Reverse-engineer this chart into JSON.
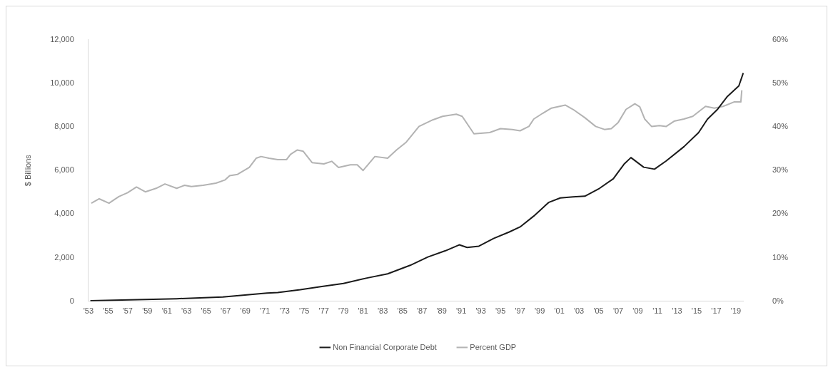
{
  "chart_data": {
    "type": "line",
    "ylabel": "$ Billions",
    "legend": "bottom",
    "grid": false,
    "marker": "none",
    "line_style": "solid",
    "xlim": [
      1953,
      2019.8
    ],
    "xticks": [
      {
        "value": 1953,
        "label": "'53"
      },
      {
        "value": 1955,
        "label": "'55"
      },
      {
        "value": 1957,
        "label": "'57"
      },
      {
        "value": 1959,
        "label": "'59"
      },
      {
        "value": 1961,
        "label": "'61"
      },
      {
        "value": 1963,
        "label": "'63"
      },
      {
        "value": 1965,
        "label": "'65"
      },
      {
        "value": 1967,
        "label": "'67"
      },
      {
        "value": 1969,
        "label": "'69"
      },
      {
        "value": 1971,
        "label": "'71"
      },
      {
        "value": 1973,
        "label": "'73"
      },
      {
        "value": 1975,
        "label": "'75"
      },
      {
        "value": 1977,
        "label": "'77"
      },
      {
        "value": 1979,
        "label": "'79"
      },
      {
        "value": 1981,
        "label": "'81"
      },
      {
        "value": 1983,
        "label": "'83"
      },
      {
        "value": 1985,
        "label": "'85"
      },
      {
        "value": 1987,
        "label": "'87"
      },
      {
        "value": 1989,
        "label": "'89"
      },
      {
        "value": 1991,
        "label": "'91"
      },
      {
        "value": 1993,
        "label": "'93"
      },
      {
        "value": 1995,
        "label": "'95"
      },
      {
        "value": 1997,
        "label": "'97"
      },
      {
        "value": 1999,
        "label": "'99"
      },
      {
        "value": 2001,
        "label": "'01"
      },
      {
        "value": 2003,
        "label": "'03"
      },
      {
        "value": 2005,
        "label": "'05"
      },
      {
        "value": 2007,
        "label": "'07"
      },
      {
        "value": 2009,
        "label": "'09"
      },
      {
        "value": 2011,
        "label": "'11"
      },
      {
        "value": 2013,
        "label": "'13"
      },
      {
        "value": 2015,
        "label": "'15"
      },
      {
        "value": 2017,
        "label": "'17"
      },
      {
        "value": 2019,
        "label": "'19"
      }
    ],
    "ylim": [
      0,
      12000
    ],
    "yticks": [
      0,
      {
        "value": 2000,
        "label": "2,000"
      },
      {
        "value": 4000,
        "label": "4,000"
      },
      {
        "value": 6000,
        "label": "6,000"
      },
      {
        "value": 8000,
        "label": "8,000"
      },
      {
        "value": 10000,
        "label": "10,000"
      },
      {
        "value": 12000,
        "label": "12,000"
      }
    ],
    "y2lim": [
      0,
      60
    ],
    "y2ticks": [
      {
        "value": 0,
        "label": "0%"
      },
      {
        "value": 10,
        "label": "10%"
      },
      {
        "value": 20,
        "label": "20%"
      },
      {
        "value": 30,
        "label": "30%"
      },
      {
        "value": 40,
        "label": "40%"
      },
      {
        "value": 50,
        "label": "50%"
      },
      {
        "value": 60,
        "label": "60%"
      }
    ],
    "series": [
      {
        "name": "Non Financial Corporate Debt",
        "color": "#1a1a1a",
        "x": [
          1953.2,
          1962.0,
          1966.7,
          1971.2,
          1972.3,
          1974.6,
          1976.8,
          1979.0,
          1981.3,
          1983.5,
          1985.8,
          1987.6,
          1989.4,
          1990.8,
          1991.6,
          1992.8,
          1994.3,
          1995.9,
          1997.0,
          1998.4,
          1999.9,
          2001.1,
          2002.4,
          2003.6,
          2005.1,
          2006.5,
          2007.6,
          2008.3,
          2009.6,
          2010.7,
          2011.9,
          2013.7,
          2015.2,
          2016.1,
          2017.1,
          2018.1,
          2019.3,
          2019.75
        ],
        "values": [
          30,
          120,
          200,
          380,
          400,
          530,
          680,
          820,
          1060,
          1260,
          1650,
          2030,
          2320,
          2590,
          2470,
          2530,
          2880,
          3180,
          3410,
          3910,
          4530,
          4740,
          4790,
          4820,
          5180,
          5620,
          6290,
          6590,
          6150,
          6060,
          6440,
          7090,
          7740,
          8350,
          8790,
          9380,
          9880,
          10470
        ]
      },
      {
        "name": "Percent GDP",
        "color": "#b3b3b3",
        "axis": "y2",
        "x": [
          1953.3,
          1954.1,
          1955.1,
          1956.1,
          1957.0,
          1957.9,
          1958.8,
          1959.9,
          1960.8,
          1962.0,
          1962.8,
          1963.5,
          1964.7,
          1966.0,
          1966.9,
          1967.4,
          1968.2,
          1969.4,
          1970.1,
          1970.6,
          1971.4,
          1972.3,
          1973.2,
          1973.6,
          1974.3,
          1974.9,
          1975.8,
          1977.0,
          1977.8,
          1978.5,
          1979.7,
          1980.4,
          1981.0,
          1982.2,
          1983.5,
          1984.4,
          1985.4,
          1986.7,
          1988.1,
          1989.1,
          1990.5,
          1991.1,
          1992.3,
          1993.9,
          1995.0,
          1996.2,
          1997.0,
          1997.9,
          1998.4,
          1999.3,
          2000.2,
          2001.6,
          2002.4,
          2003.6,
          2004.7,
          2005.6,
          2006.3,
          2007.0,
          2007.8,
          2008.7,
          2009.2,
          2009.7,
          2010.4,
          2011.2,
          2011.9,
          2012.7,
          2013.7,
          2014.6,
          2015.9,
          2016.8,
          2017.7,
          2018.8,
          2019.5,
          2019.6
        ],
        "values": [
          22.5,
          23.5,
          22.5,
          24.0,
          24.9,
          26.2,
          25.1,
          25.9,
          26.9,
          25.9,
          26.6,
          26.3,
          26.6,
          27.1,
          27.8,
          28.8,
          29.1,
          30.7,
          32.8,
          33.2,
          32.8,
          32.5,
          32.5,
          33.7,
          34.7,
          34.4,
          31.8,
          31.5,
          32.1,
          30.7,
          31.3,
          31.3,
          30.0,
          33.2,
          32.8,
          34.7,
          36.5,
          40.1,
          41.6,
          42.4,
          42.9,
          42.4,
          38.4,
          38.7,
          39.6,
          39.4,
          39.1,
          40.1,
          41.8,
          43.1,
          44.3,
          45.0,
          44.0,
          42.1,
          40.1,
          39.4,
          39.6,
          41.0,
          44.0,
          45.3,
          44.6,
          41.8,
          40.1,
          40.3,
          40.1,
          41.3,
          41.8,
          42.4,
          44.7,
          44.3,
          44.7,
          45.7,
          45.7,
          48.4
        ]
      }
    ]
  }
}
